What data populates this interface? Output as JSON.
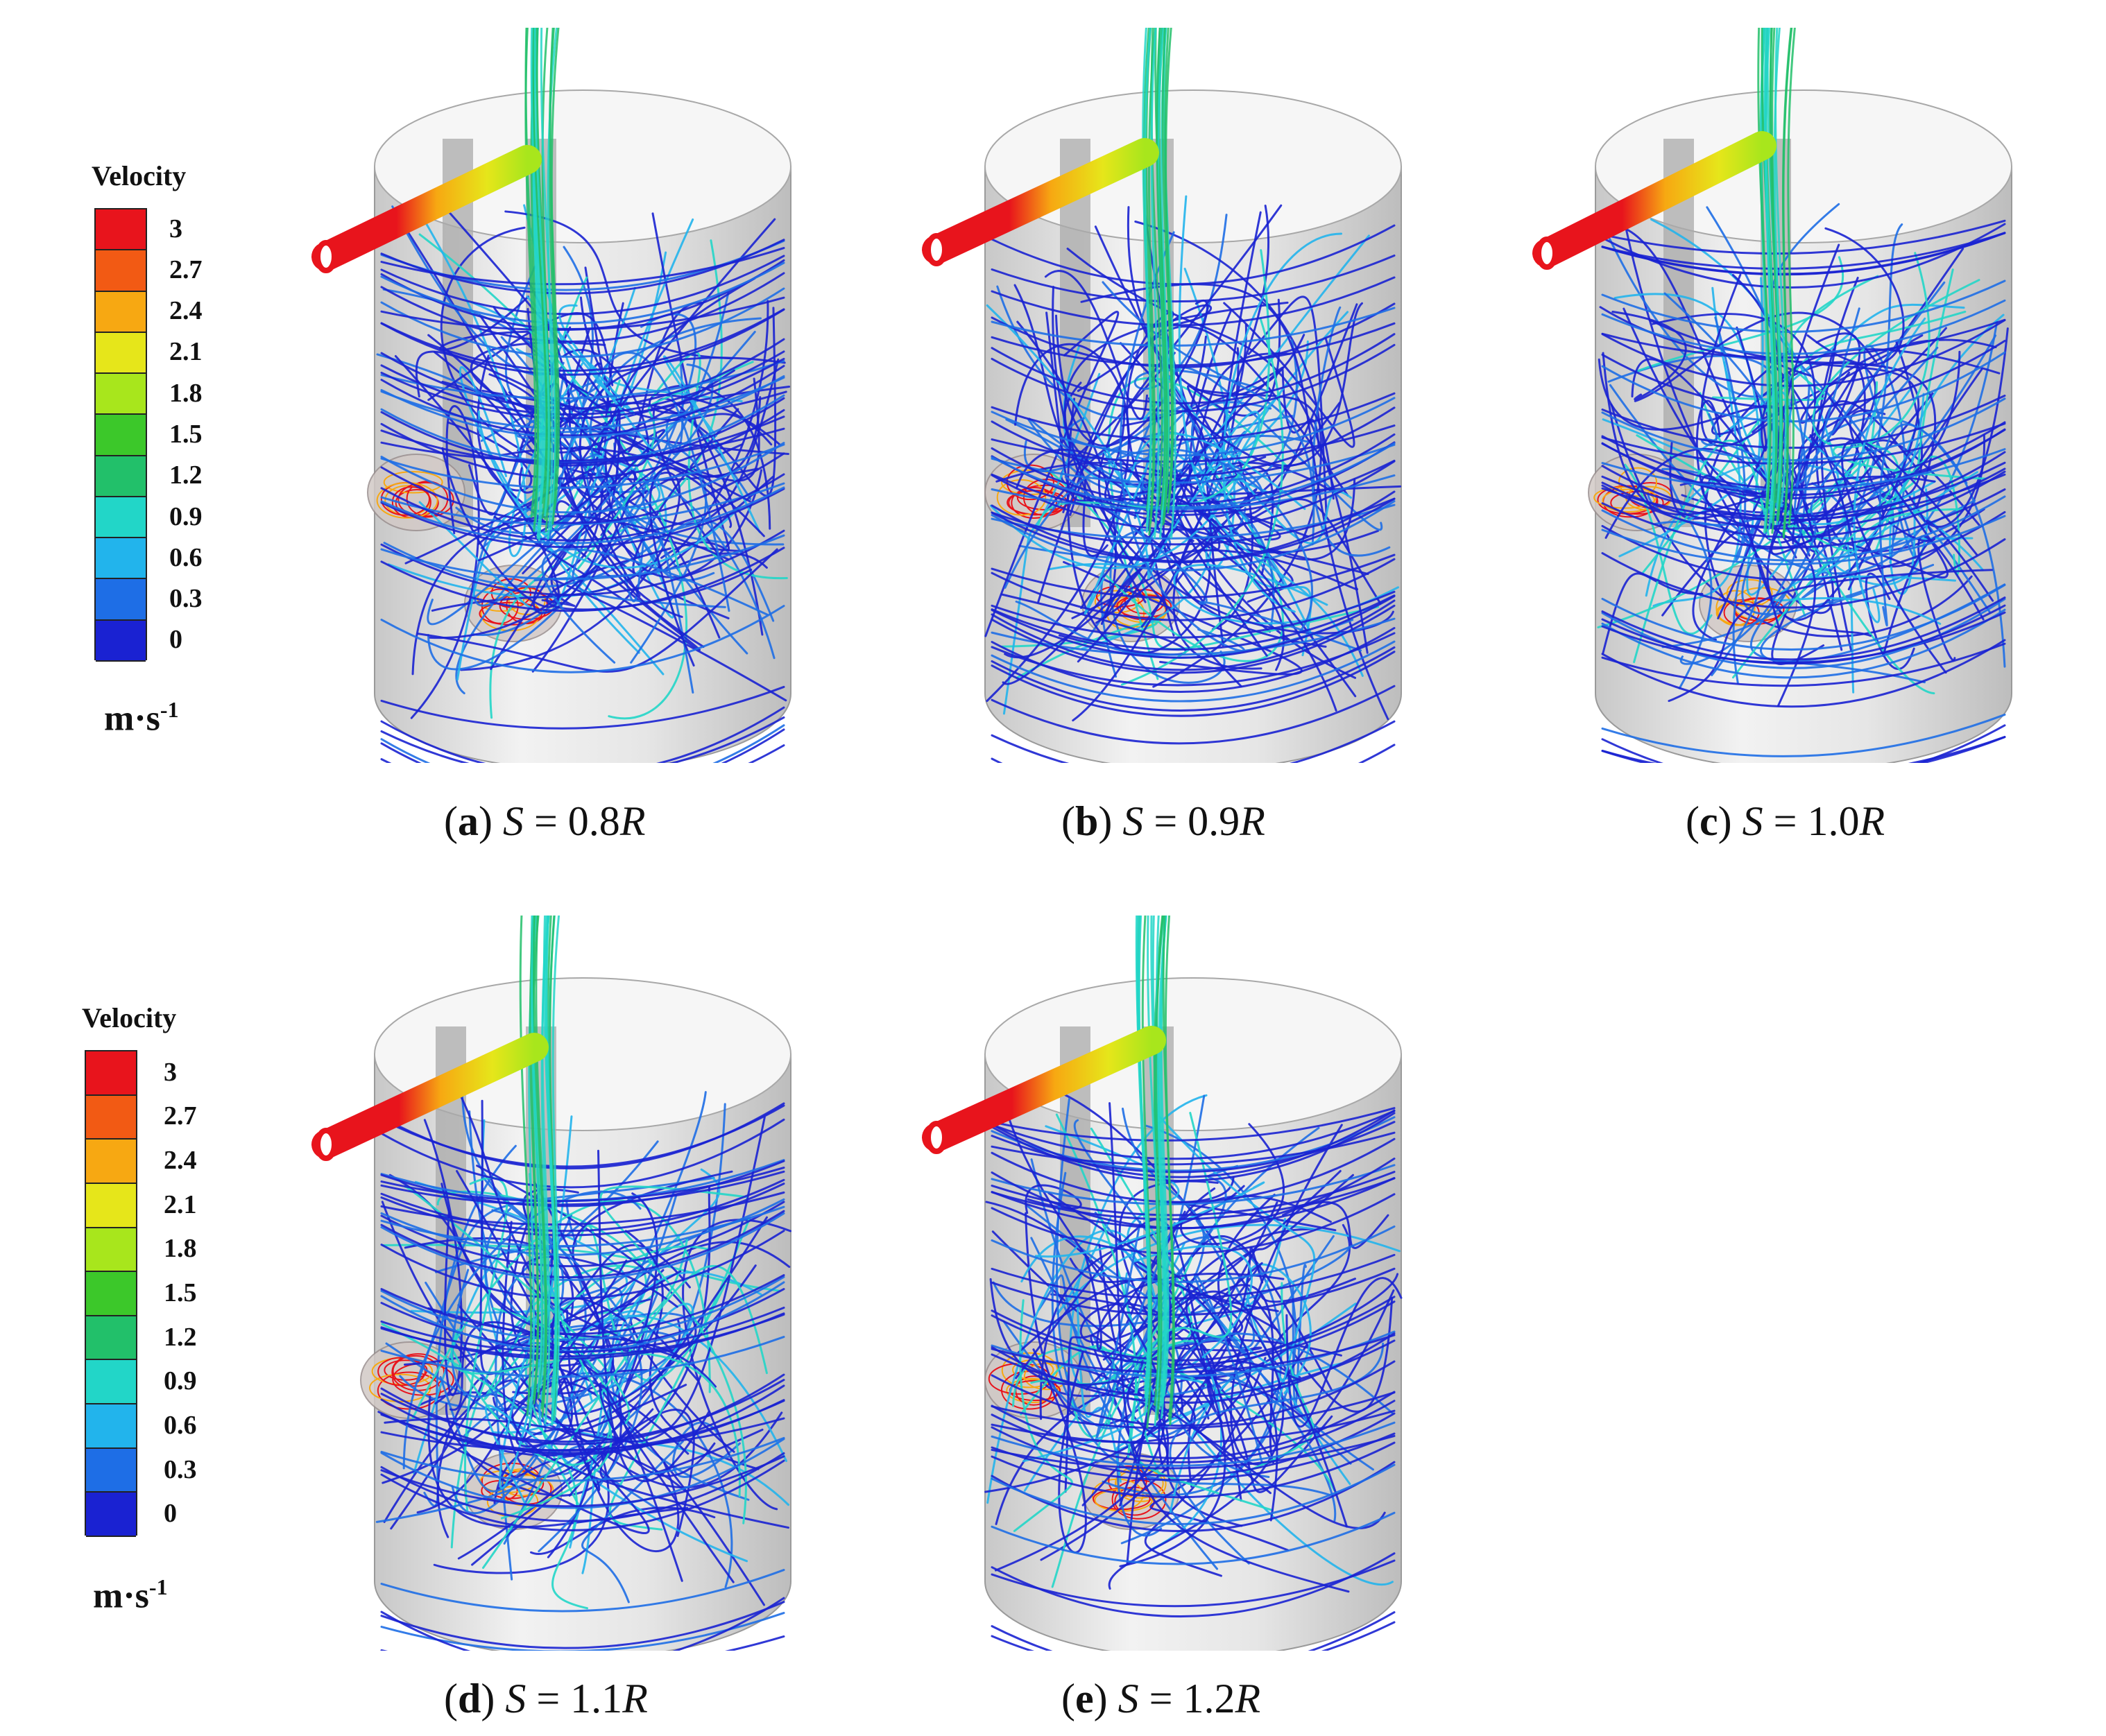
{
  "legends": [
    {
      "title": "Velocity",
      "ticks": [
        "3",
        "2.7",
        "2.4",
        "2.1",
        "1.8",
        "1.5",
        "1.2",
        "0.9",
        "0.6",
        "0.3",
        "0"
      ],
      "unit": "m·s",
      "unit_exp": "-1",
      "colors": [
        "#e8141c",
        "#f25a14",
        "#f7a812",
        "#e6e61a",
        "#a8e61c",
        "#3cc82a",
        "#22c06a",
        "#22d6c8",
        "#22b4ec",
        "#1e6ee6",
        "#1a22d2"
      ]
    },
    {
      "title": "Velocity",
      "ticks": [
        "3",
        "2.7",
        "2.4",
        "2.1",
        "1.8",
        "1.5",
        "1.2",
        "0.9",
        "0.6",
        "0.3",
        "0"
      ],
      "unit": "m·s",
      "unit_exp": "-1",
      "colors": [
        "#e8141c",
        "#f25a14",
        "#f7a812",
        "#e6e61a",
        "#a8e61c",
        "#3cc82a",
        "#22c06a",
        "#22d6c8",
        "#22b4ec",
        "#1e6ee6",
        "#1a22d2"
      ]
    }
  ],
  "panels": [
    {
      "letter": "a",
      "var": "S",
      "eq": " = 0.8",
      "unit": "R"
    },
    {
      "letter": "b",
      "var": "S",
      "eq": " = 0.9",
      "unit": "R"
    },
    {
      "letter": "c",
      "var": "S",
      "eq": " = 1.0",
      "unit": "R"
    },
    {
      "letter": "d",
      "var": "S",
      "eq": " = 1.1",
      "unit": "R"
    },
    {
      "letter": "e",
      "var": "S",
      "eq": " = 1.2",
      "unit": "R"
    }
  ]
}
